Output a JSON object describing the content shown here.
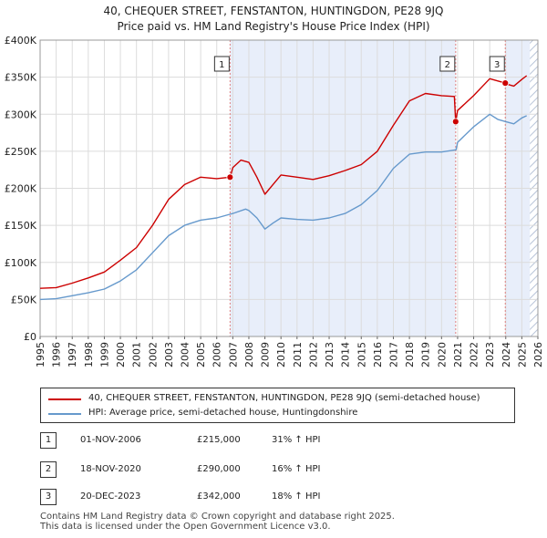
{
  "title_line1": "40, CHEQUER STREET, FENSTANTON, HUNTINGDON, PE28 9JQ",
  "title_line2": "Price paid vs. HM Land Registry's House Price Index (HPI)",
  "colors": {
    "property": "#cc0000",
    "hpi": "#6699cc",
    "shade": "#e8eefa",
    "vline": "#e08080"
  },
  "chart_data": {
    "type": "line",
    "xlim": [
      1995,
      2026
    ],
    "ylim": [
      0,
      400000
    ],
    "y_ticks": [
      {
        "value": 0,
        "label": "£0"
      },
      {
        "value": 50000,
        "label": "£50K"
      },
      {
        "value": 100000,
        "label": "£100K"
      },
      {
        "value": 150000,
        "label": "£150K"
      },
      {
        "value": 200000,
        "label": "£200K"
      },
      {
        "value": 250000,
        "label": "£250K"
      },
      {
        "value": 300000,
        "label": "£300K"
      },
      {
        "value": 350000,
        "label": "£350K"
      },
      {
        "value": 400000,
        "label": "£400K"
      }
    ],
    "x_ticks": [
      "1995",
      "1996",
      "1997",
      "1998",
      "1999",
      "2000",
      "2001",
      "2002",
      "2003",
      "2004",
      "2005",
      "2006",
      "2007",
      "2008",
      "2009",
      "2010",
      "2011",
      "2012",
      "2013",
      "2014",
      "2015",
      "2016",
      "2017",
      "2018",
      "2019",
      "2020",
      "2021",
      "2022",
      "2023",
      "2024",
      "2025",
      "2026"
    ],
    "shaded_ranges": [
      [
        2006.83,
        2020.88
      ],
      [
        2023.97,
        2025.5
      ]
    ],
    "hatched_range": [
      2025.5,
      2026
    ],
    "series": [
      {
        "name": "40, CHEQUER STREET, FENSTANTON, HUNTINGDON, PE28 9JQ (semi-detached house)",
        "color": "#cc0000",
        "points": [
          [
            1995,
            65000
          ],
          [
            1996,
            66000
          ],
          [
            1997,
            72000
          ],
          [
            1998,
            79000
          ],
          [
            1999,
            87000
          ],
          [
            2000,
            103000
          ],
          [
            2001,
            120000
          ],
          [
            2002,
            150000
          ],
          [
            2003,
            185000
          ],
          [
            2004,
            205000
          ],
          [
            2005,
            215000
          ],
          [
            2006,
            213000
          ],
          [
            2006.83,
            215000
          ],
          [
            2007,
            228000
          ],
          [
            2007.5,
            238000
          ],
          [
            2008,
            235000
          ],
          [
            2008.5,
            215000
          ],
          [
            2009,
            192000
          ],
          [
            2009.5,
            205000
          ],
          [
            2010,
            218000
          ],
          [
            2011,
            215000
          ],
          [
            2012,
            212000
          ],
          [
            2013,
            217000
          ],
          [
            2014,
            224000
          ],
          [
            2015,
            232000
          ],
          [
            2016,
            250000
          ],
          [
            2017,
            285000
          ],
          [
            2018,
            318000
          ],
          [
            2019,
            328000
          ],
          [
            2020,
            325000
          ],
          [
            2020.8,
            324000
          ],
          [
            2020.88,
            290000
          ],
          [
            2021,
            305000
          ],
          [
            2022,
            325000
          ],
          [
            2023,
            348000
          ],
          [
            2023.97,
            342000
          ],
          [
            2024,
            341000
          ],
          [
            2024.5,
            338000
          ],
          [
            2025,
            347000
          ],
          [
            2025.3,
            352000
          ]
        ]
      },
      {
        "name": "HPI: Average price, semi-detached house, Huntingdonshire",
        "color": "#6699cc",
        "points": [
          [
            1995,
            50000
          ],
          [
            1996,
            51000
          ],
          [
            1997,
            55000
          ],
          [
            1998,
            59000
          ],
          [
            1999,
            64000
          ],
          [
            2000,
            75000
          ],
          [
            2001,
            90000
          ],
          [
            2002,
            113000
          ],
          [
            2003,
            136000
          ],
          [
            2004,
            150000
          ],
          [
            2005,
            157000
          ],
          [
            2006,
            160000
          ],
          [
            2007,
            166000
          ],
          [
            2007.8,
            172000
          ],
          [
            2008,
            170000
          ],
          [
            2008.5,
            160000
          ],
          [
            2009,
            145000
          ],
          [
            2009.5,
            153000
          ],
          [
            2010,
            160000
          ],
          [
            2011,
            158000
          ],
          [
            2012,
            157000
          ],
          [
            2013,
            160000
          ],
          [
            2014,
            166000
          ],
          [
            2015,
            178000
          ],
          [
            2016,
            197000
          ],
          [
            2017,
            227000
          ],
          [
            2018,
            246000
          ],
          [
            2019,
            249000
          ],
          [
            2020,
            249000
          ],
          [
            2020.9,
            252000
          ],
          [
            2021,
            262000
          ],
          [
            2022,
            283000
          ],
          [
            2023,
            300000
          ],
          [
            2023.5,
            293000
          ],
          [
            2024,
            290000
          ],
          [
            2024.5,
            287000
          ],
          [
            2025,
            295000
          ],
          [
            2025.3,
            298000
          ]
        ]
      }
    ],
    "sale_markers": [
      {
        "label": "1",
        "x": 2006.83,
        "y": 215000
      },
      {
        "label": "2",
        "x": 2020.88,
        "y": 290000
      },
      {
        "label": "3",
        "x": 2023.97,
        "y": 342000
      }
    ]
  },
  "legend": {
    "property_label": "40, CHEQUER STREET, FENSTANTON, HUNTINGDON, PE28 9JQ (semi-detached house)",
    "hpi_label": "HPI: Average price, semi-detached house, Huntingdonshire"
  },
  "sales": [
    {
      "num": "1",
      "date": "01-NOV-2006",
      "price": "£215,000",
      "hpi": "31% ↑ HPI"
    },
    {
      "num": "2",
      "date": "18-NOV-2020",
      "price": "£290,000",
      "hpi": "16% ↑ HPI"
    },
    {
      "num": "3",
      "date": "20-DEC-2023",
      "price": "£342,000",
      "hpi": "18% ↑ HPI"
    }
  ],
  "footer_line1": "Contains HM Land Registry data © Crown copyright and database right 2025.",
  "footer_line2": "This data is licensed under the Open Government Licence v3.0."
}
